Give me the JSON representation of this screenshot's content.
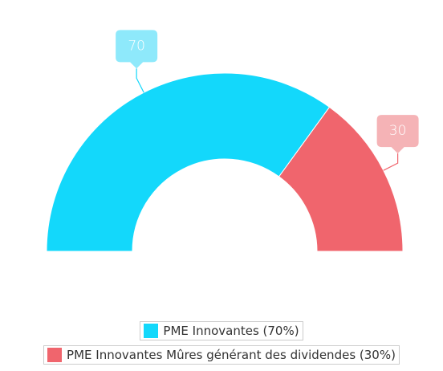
{
  "chart_data": {
    "type": "pie",
    "categories": [
      "PME Innovantes (70%)",
      "PME Innovantes Mûres générant des dividendes (30%)"
    ],
    "values": [
      70,
      30
    ],
    "colors": [
      "#13d8fb",
      "#f0656d"
    ],
    "label_colors": [
      "#8ee9fb",
      "#f5b3b6"
    ]
  }
}
